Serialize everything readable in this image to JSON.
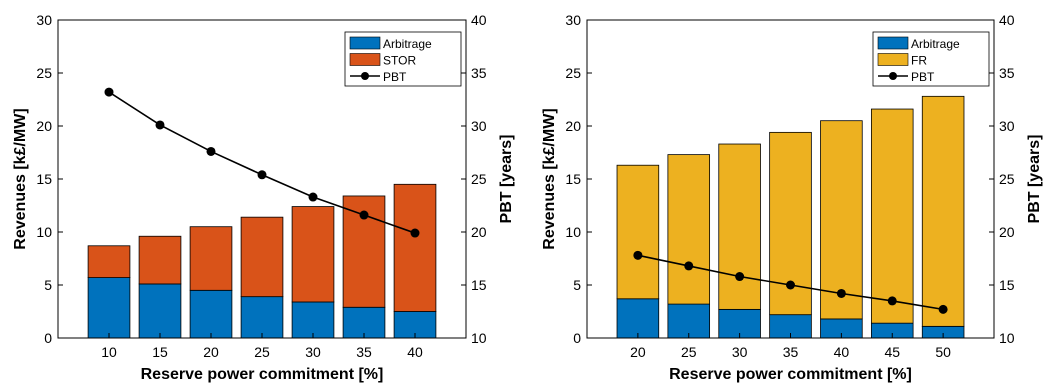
{
  "chart_data": [
    {
      "type": "bar",
      "stacked": true,
      "secondary_type": "line",
      "categories": [
        "10",
        "15",
        "20",
        "25",
        "30",
        "35",
        "40"
      ],
      "series": [
        {
          "name": "Arbitrage",
          "values": [
            5.7,
            5.1,
            4.5,
            3.9,
            3.4,
            2.9,
            2.5
          ],
          "color": "#0072BD"
        },
        {
          "name": "STOR",
          "values": [
            3.0,
            4.5,
            6.0,
            7.5,
            9.0,
            10.5,
            12.0
          ],
          "color": "#D95319"
        }
      ],
      "line_series": {
        "name": "PBT",
        "values": [
          33.2,
          30.1,
          27.6,
          25.4,
          23.3,
          21.6,
          19.9
        ],
        "color": "#000000"
      },
      "xlabel": "Reserve power commitment [%]",
      "ylabel": "Revenues [k£/MW]",
      "y2label": "PBT [years]",
      "ylim": [
        0,
        30
      ],
      "y2lim": [
        10,
        40
      ],
      "yticks": [
        "0",
        "5",
        "10",
        "15",
        "20",
        "25",
        "30"
      ],
      "y2ticks": [
        "10",
        "15",
        "20",
        "25",
        "30",
        "35",
        "40"
      ],
      "legend": "top-right",
      "grid": false
    },
    {
      "type": "bar",
      "stacked": true,
      "secondary_type": "line",
      "categories": [
        "20",
        "25",
        "30",
        "35",
        "40",
        "45",
        "50"
      ],
      "series": [
        {
          "name": "Arbitrage",
          "values": [
            3.7,
            3.2,
            2.7,
            2.2,
            1.8,
            1.4,
            1.1
          ],
          "color": "#0072BD"
        },
        {
          "name": "FR",
          "values": [
            12.6,
            14.1,
            15.6,
            17.2,
            18.7,
            20.2,
            21.7
          ],
          "color": "#EDB120"
        }
      ],
      "line_series": {
        "name": "PBT",
        "values": [
          17.8,
          16.8,
          15.8,
          15.0,
          14.2,
          13.5,
          12.7
        ],
        "color": "#000000"
      },
      "xlabel": "Reserve power commitment [%]",
      "ylabel": "Revenues [k£/MW]",
      "y2label": "PBT [years]",
      "ylim": [
        0,
        30
      ],
      "y2lim": [
        10,
        40
      ],
      "yticks": [
        "0",
        "5",
        "10",
        "15",
        "20",
        "25",
        "30"
      ],
      "y2ticks": [
        "10",
        "15",
        "20",
        "25",
        "30",
        "35",
        "40"
      ],
      "legend": "top-right",
      "grid": false
    }
  ]
}
